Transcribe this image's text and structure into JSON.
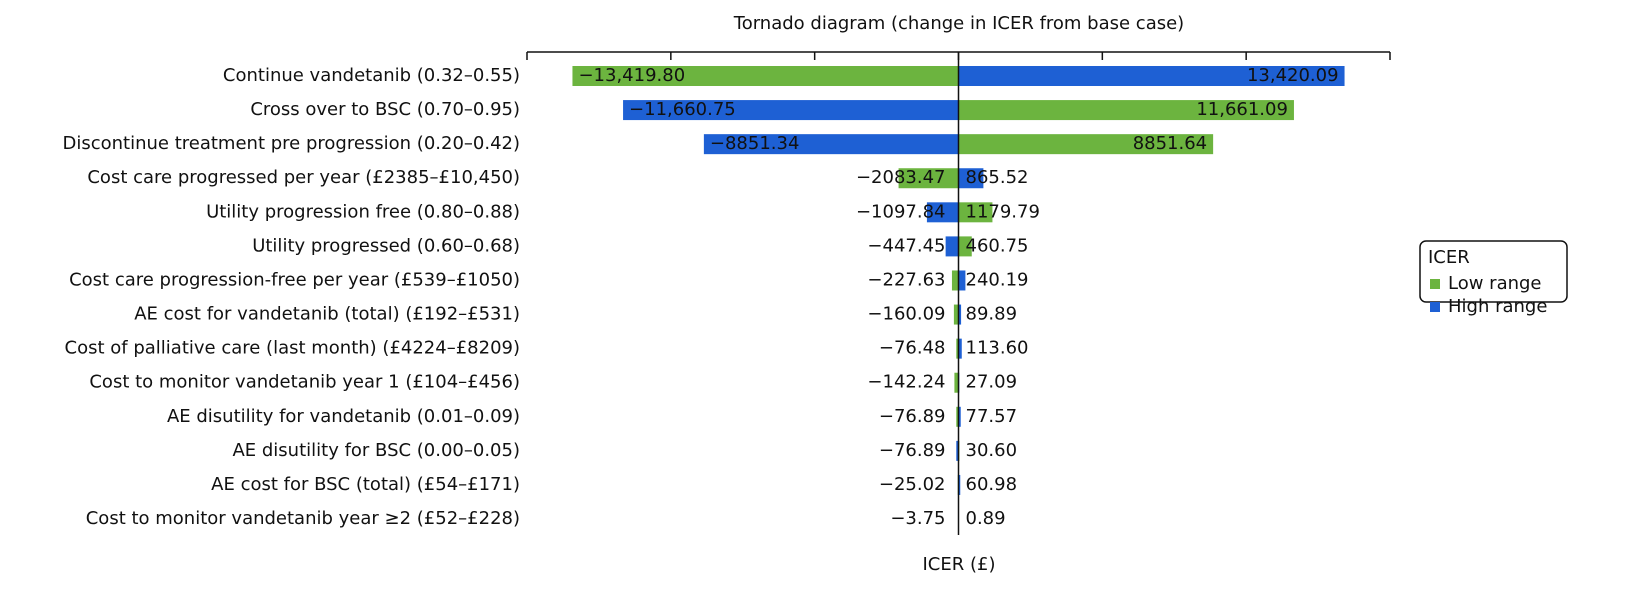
{
  "chart_data": {
    "type": "tornado",
    "title": "Tornado diagram (change in ICER from base case)",
    "xlabel": "ICER (£)",
    "legend_title": "ICER",
    "legend_position": "right",
    "xlim": [
      -15000,
      15000
    ],
    "xticks": [
      -15000,
      -10000,
      -5000,
      0,
      5000,
      10000,
      15000
    ],
    "categories": [
      "Continue vandetanib (0.32–0.55)",
      "Cross over to BSC (0.70–0.95)",
      "Discontinue treatment pre progression (0.20–0.42)",
      "Cost care progressed per year (£2385–£10,450)",
      "Utility progression free (0.80–0.88)",
      "Utility progressed (0.60–0.68)",
      "Cost care progression-free per year (£539–£1050)",
      "AE cost for vandetanib (total) (£192–£531)",
      "Cost of palliative care (last month) (£4224–£8209)",
      "Cost to monitor vandetanib year 1 (£104–£456)",
      "AE disutility for vandetanib (0.01–0.09)",
      "AE disutility for BSC (0.00–0.05)",
      "AE cost for BSC (total) (£54–£171)",
      "Cost to monitor vandetanib year ≥2 (£52–£228)"
    ],
    "series": [
      {
        "name": "Low range",
        "color": "#6cb43f",
        "values": [
          -13419.8,
          11661.09,
          8851.64,
          -2083.47,
          1179.79,
          460.75,
          -227.63,
          -160.09,
          -76.48,
          -142.24,
          -76.89,
          30.6,
          -25.02,
          -3.75
        ],
        "value_labels": [
          "−13,419.80",
          "11,661.09",
          "8851.64",
          "−2083.47",
          "1179.79",
          "460.75",
          "−227.63",
          "−160.09",
          "−76.48",
          "−142.24",
          "−76.89",
          "30.60",
          "−25.02",
          "−3.75"
        ]
      },
      {
        "name": "High range",
        "color": "#1e60d4",
        "values": [
          13420.09,
          -11660.75,
          -8851.34,
          865.52,
          -1097.84,
          -447.45,
          240.19,
          89.89,
          113.6,
          27.09,
          77.57,
          -76.89,
          60.98,
          0.89
        ],
        "value_labels": [
          "13,420.09",
          "−11,660.75",
          "−8851.34",
          "865.52",
          "−1097.84",
          "−447.45",
          "240.19",
          "89.89",
          "113.60",
          "27.09",
          "77.57",
          "−76.89",
          "60.98",
          "0.89"
        ]
      }
    ]
  }
}
